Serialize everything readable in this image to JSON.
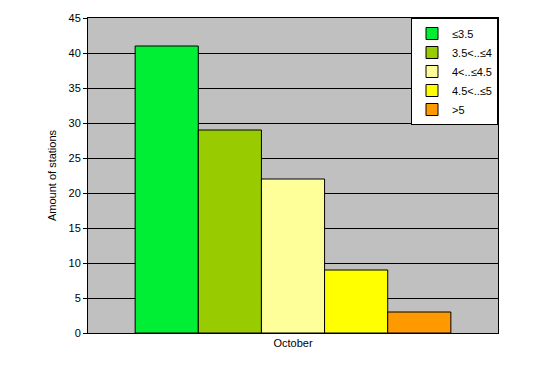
{
  "chart_data": {
    "type": "bar",
    "ylabel": "Amount of stations",
    "categories": [
      "October"
    ],
    "series": [
      {
        "name": "≤3.5",
        "color": "#00ee33",
        "values": [
          41
        ]
      },
      {
        "name": "3.5<..≤4",
        "color": "#99cc00",
        "values": [
          29
        ]
      },
      {
        "name": "4<..≤4.5",
        "color": "#ffff99",
        "values": [
          22
        ]
      },
      {
        "name": "4.5<..≤5",
        "color": "#ffff00",
        "values": [
          9
        ]
      },
      {
        "name": ">5",
        "color": "#ff9900",
        "values": [
          3
        ]
      }
    ],
    "ylim": [
      0,
      45
    ],
    "yticks": [
      0,
      5,
      10,
      15,
      20,
      25,
      30,
      35,
      40,
      45
    ],
    "grid": true,
    "legend": "top right"
  }
}
